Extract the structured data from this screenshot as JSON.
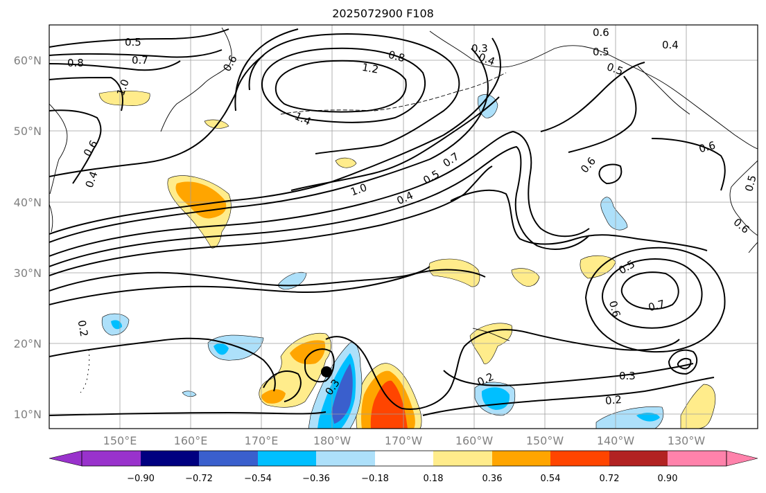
{
  "title": "2025072900 F108",
  "map": {
    "lat_ticks": [
      "60°N",
      "50°N",
      "40°N",
      "30°N",
      "20°N",
      "10°N"
    ],
    "lon_ticks": [
      "150°E",
      "160°E",
      "170°E",
      "180°W",
      "170°W",
      "160°W",
      "150°W",
      "140°W",
      "130°W"
    ],
    "contour_labels": [
      {
        "text": "0.5"
      },
      {
        "text": "0.7"
      },
      {
        "text": "0.8"
      },
      {
        "text": "1.0"
      },
      {
        "text": "0.6"
      },
      {
        "text": "1.2"
      },
      {
        "text": "0.8"
      },
      {
        "text": "1.4"
      },
      {
        "text": "0.3"
      },
      {
        "text": "0.4"
      },
      {
        "text": "0.6"
      },
      {
        "text": "0.5"
      },
      {
        "text": "0.4"
      },
      {
        "text": "0.6"
      },
      {
        "text": "0.5"
      },
      {
        "text": "1.0"
      },
      {
        "text": "0.7"
      },
      {
        "text": "0.5"
      },
      {
        "text": "0.4"
      },
      {
        "text": "0.6"
      },
      {
        "text": "0.6"
      },
      {
        "text": "0.4"
      },
      {
        "text": "0.5"
      },
      {
        "text": "0.6"
      },
      {
        "text": "0.7"
      },
      {
        "text": "0.6"
      },
      {
        "text": "0.2"
      },
      {
        "text": "0.3"
      },
      {
        "text": "0.2"
      },
      {
        "text": "0.3"
      },
      {
        "text": "0.2"
      },
      {
        "text": "0.5"
      }
    ],
    "colors": {
      "purple": "#9932cc",
      "navy": "#000080",
      "royal": "#3a5fcd",
      "cyan": "#00bfff",
      "lightblue": "#ade0fa",
      "white": "#ffffff",
      "yellow": "#ffec8b",
      "orange": "#ffa500",
      "red": "#ff4500",
      "darkred": "#b22222",
      "pink": "#ff82ab"
    }
  },
  "colorbar": {
    "ticks": [
      "−0.90",
      "−0.72",
      "−0.54",
      "−0.36",
      "−0.18",
      "0.18",
      "0.36",
      "0.54",
      "0.72",
      "0.90"
    ],
    "colors": [
      "#9932cc",
      "#000080",
      "#3a5fcd",
      "#00bfff",
      "#ade0fa",
      "#ffffff",
      "#ffec8b",
      "#ffa500",
      "#ff4500",
      "#b22222",
      "#ff82ab"
    ]
  }
}
